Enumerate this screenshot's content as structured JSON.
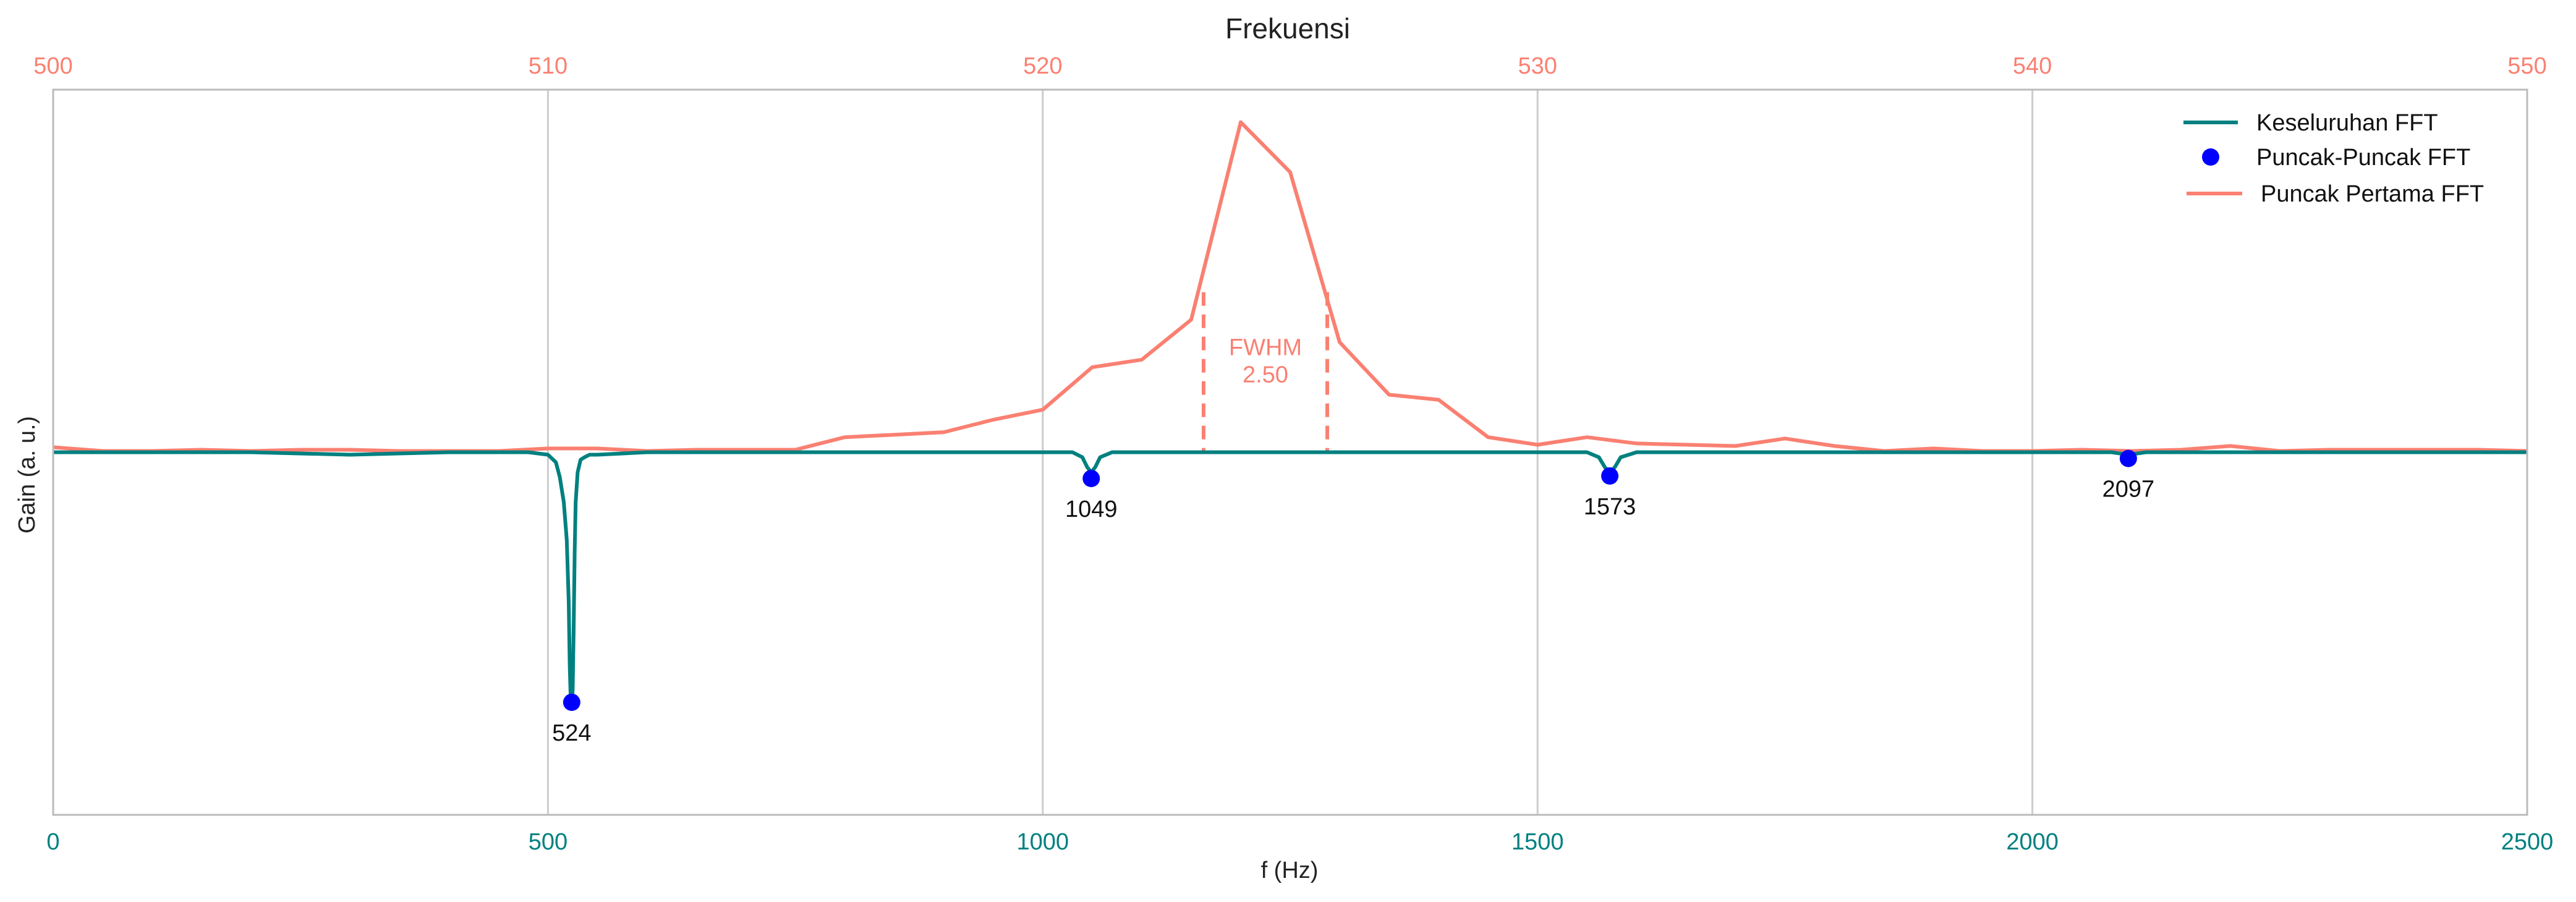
{
  "chart_data": {
    "type": "line",
    "title": "Frekuensi",
    "xlabel": "f (Hz)",
    "ylabel": "Gain (a. u.)",
    "grid": true,
    "legend_position": "top-right",
    "colors": {
      "overall": "#008080",
      "peaks": "#0000ff",
      "first_peak": "#fa8072",
      "grid": "#cccccc",
      "frame": "#bbbbbb",
      "text": "#222222"
    },
    "x_bottom": {
      "lim": [
        0,
        2500
      ],
      "ticks": [
        0,
        500,
        1000,
        1500,
        2000,
        2500
      ],
      "tick_labels": [
        "0",
        "500",
        "1000",
        "1500",
        "2000",
        "2500"
      ]
    },
    "x_top": {
      "lim": [
        500,
        550
      ],
      "ticks": [
        500,
        510,
        520,
        530,
        540,
        550
      ],
      "tick_labels": [
        "500",
        "510",
        "520",
        "530",
        "540",
        "550"
      ]
    },
    "ylim": [
      -1.45,
      1.45
    ],
    "legend": [
      "Keseluruhan FFT",
      "Puncak-Puncak FFT",
      "Puncak Pertama FFT"
    ],
    "series": [
      {
        "name": "Keseluruhan FFT",
        "axis": "bottom",
        "x": [
          0,
          100,
          200,
          300,
          400,
          480,
          500,
          508,
          512,
          516,
          519,
          521,
          522,
          523,
          524,
          525,
          526,
          527,
          528,
          530,
          533,
          537,
          542,
          550,
          600,
          700,
          800,
          900,
          1000,
          1030,
          1040,
          1045,
          1049,
          1053,
          1058,
          1070,
          1100,
          1200,
          1300,
          1400,
          1500,
          1550,
          1562,
          1568,
          1573,
          1578,
          1584,
          1600,
          1700,
          1800,
          1900,
          2000,
          2080,
          2097,
          2115,
          2200,
          2300,
          2400,
          2500
        ],
        "y": [
          0,
          0,
          0,
          -0.01,
          0,
          0,
          -0.01,
          -0.04,
          -0.1,
          -0.2,
          -0.35,
          -0.6,
          -0.85,
          -0.99,
          -1.0,
          -0.95,
          -0.7,
          -0.4,
          -0.2,
          -0.08,
          -0.03,
          -0.02,
          -0.01,
          -0.01,
          0,
          0,
          0,
          0,
          0,
          0,
          -0.02,
          -0.06,
          -0.08,
          -0.06,
          -0.02,
          0,
          0,
          0,
          0,
          0,
          0,
          0,
          -0.02,
          -0.06,
          -0.08,
          -0.06,
          -0.02,
          0,
          0,
          0,
          0,
          0,
          0,
          -0.01,
          0,
          0,
          0,
          0,
          0
        ]
      },
      {
        "name": "Puncak-Puncak FFT",
        "axis": "bottom",
        "type": "scatter",
        "x": [
          524,
          1049,
          1573,
          2097
        ],
        "y": [
          -1.0,
          -0.105,
          -0.095,
          -0.025
        ],
        "labels": [
          "524",
          "1049",
          "1573",
          "2097"
        ]
      },
      {
        "name": "Puncak Pertama FFT",
        "axis": "top",
        "x": [
          500,
          501,
          502,
          503,
          504,
          505,
          506,
          507,
          508,
          509,
          510,
          511,
          512,
          513,
          514,
          515,
          516,
          517,
          518,
          519,
          520,
          521,
          522,
          523,
          524,
          525,
          526,
          527,
          528,
          529,
          530,
          531,
          532,
          533,
          534,
          535,
          536,
          537,
          538,
          539,
          540,
          541,
          542,
          543,
          544,
          545,
          546,
          547,
          548,
          549,
          550
        ],
        "y": [
          0.02,
          0.005,
          0.005,
          0.01,
          0.005,
          0.01,
          0.01,
          0.005,
          0.005,
          0.005,
          0.015,
          0.015,
          0.005,
          0.01,
          0.01,
          0.01,
          0.06,
          0.07,
          0.08,
          0.13,
          0.17,
          0.34,
          0.37,
          0.53,
          1.32,
          1.12,
          0.44,
          0.23,
          0.21,
          0.06,
          0.03,
          0.06,
          0.035,
          0.03,
          0.025,
          0.055,
          0.025,
          0.005,
          0.015,
          0.005,
          0.005,
          0.01,
          0.005,
          0.01,
          0.025,
          0.005,
          0.01,
          0.01,
          0.01,
          0.01,
          0.005
        ]
      }
    ],
    "fwhm": {
      "label": "FWHM",
      "value_text": "2.50",
      "left_x": 523.25,
      "right_x": 525.75,
      "top_y": 0.64
    }
  }
}
